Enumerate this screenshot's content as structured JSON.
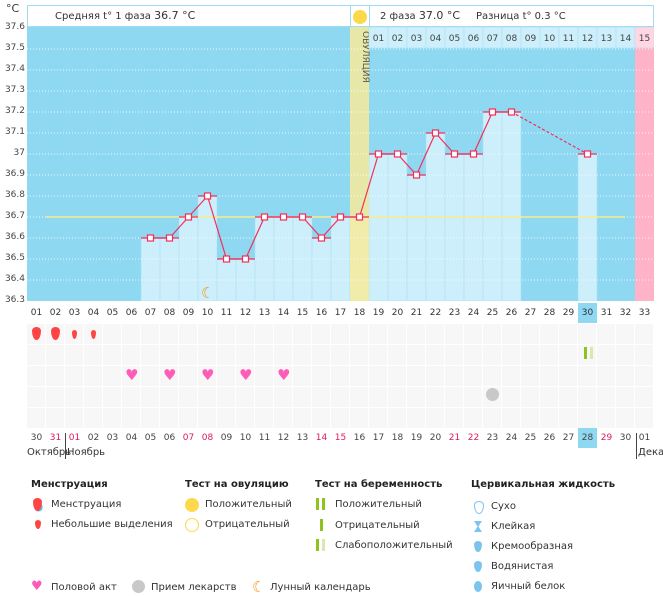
{
  "unit": "°C",
  "header": {
    "phase1": "Средняя t° 1 фаза",
    "phase1_value": "36.7 °C",
    "phase2": "2 фаза",
    "phase2_value": "37.0 °C",
    "diff": "Разница t°",
    "diff_value": "0.3 °C"
  },
  "ovulation_label": "ОВУЛЯЦИЯ",
  "y_ticks": [
    "37.6",
    "37.5",
    "37.4",
    "37.3",
    "37.2",
    "37.1",
    "37",
    "36.9",
    "36.8",
    "36.7",
    "36.6",
    "36.5",
    "36.4",
    "36.3"
  ],
  "cycle_days": [
    "01",
    "02",
    "03",
    "04",
    "05",
    "06",
    "07",
    "08",
    "09",
    "10",
    "11",
    "12",
    "13",
    "14",
    "15",
    "16",
    "17",
    "18",
    "19",
    "20",
    "21",
    "22",
    "23",
    "24",
    "25",
    "26",
    "27",
    "28",
    "29",
    "30",
    "31",
    "32",
    "33"
  ],
  "phase2_days": [
    "01",
    "02",
    "03",
    "04",
    "05",
    "06",
    "07",
    "08",
    "09",
    "10",
    "11",
    "12",
    "13",
    "14",
    "15"
  ],
  "dates": [
    {
      "d": "30"
    },
    {
      "d": "31",
      "w": 1
    },
    {
      "d": "01",
      "w": 1
    },
    {
      "d": "02"
    },
    {
      "d": "03"
    },
    {
      "d": "04"
    },
    {
      "d": "05"
    },
    {
      "d": "06"
    },
    {
      "d": "07",
      "w": 1
    },
    {
      "d": "08",
      "w": 1
    },
    {
      "d": "09"
    },
    {
      "d": "10"
    },
    {
      "d": "11"
    },
    {
      "d": "12"
    },
    {
      "d": "13"
    },
    {
      "d": "14",
      "w": 1
    },
    {
      "d": "15",
      "w": 1
    },
    {
      "d": "16"
    },
    {
      "d": "17"
    },
    {
      "d": "18"
    },
    {
      "d": "19"
    },
    {
      "d": "20"
    },
    {
      "d": "21",
      "w": 1
    },
    {
      "d": "22",
      "w": 1
    },
    {
      "d": "23"
    },
    {
      "d": "24"
    },
    {
      "d": "25"
    },
    {
      "d": "26"
    },
    {
      "d": "27"
    },
    {
      "d": "28"
    },
    {
      "d": "29",
      "w": 1
    },
    {
      "d": "30"
    },
    {
      "d": "01"
    }
  ],
  "months": [
    "Октябрь",
    "Ноябрь",
    "Дека"
  ],
  "today_day": 30,
  "chart_data": {
    "type": "line",
    "ylim": [
      36.3,
      37.6
    ],
    "cover_line": 36.7,
    "ovulation_day": 18,
    "points": [
      [
        7,
        36.6
      ],
      [
        8,
        36.6
      ],
      [
        9,
        36.7
      ],
      [
        10,
        36.8
      ],
      [
        11,
        36.5
      ],
      [
        12,
        36.5
      ],
      [
        13,
        36.7
      ],
      [
        14,
        36.7
      ],
      [
        15,
        36.7
      ],
      [
        16,
        36.6
      ],
      [
        17,
        36.7
      ],
      [
        18,
        36.7
      ],
      [
        19,
        37.0
      ],
      [
        20,
        37.0
      ],
      [
        21,
        36.9
      ],
      [
        22,
        37.1
      ],
      [
        23,
        37.0
      ],
      [
        24,
        37.0
      ],
      [
        25,
        37.2
      ],
      [
        26,
        37.2
      ],
      [
        30,
        37.0
      ]
    ]
  },
  "events": {
    "menstruation": [
      1,
      2
    ],
    "spotting": [
      3,
      4
    ],
    "sex": [
      6,
      8,
      10,
      12,
      14
    ],
    "medication": [
      25
    ],
    "pregnancy_test_weak": [
      30
    ],
    "moon": [
      10
    ]
  },
  "legend": {
    "menstruation": {
      "title": "Менструация",
      "items": [
        "Менструация",
        "Небольшие выделения"
      ]
    },
    "ovulation_test": {
      "title": "Тест на овуляцию",
      "items": [
        "Положительный",
        "Отрицательный"
      ]
    },
    "pregnancy_test": {
      "title": "Тест на беременность",
      "items": [
        "Положительный",
        "Отрицательный",
        "Слабоположительный"
      ]
    },
    "cervical": {
      "title": "Цервикальная жидкость",
      "items": [
        "Сухо",
        "Клейкая",
        "Кремообразная",
        "Водянистая",
        "Яичный белок"
      ]
    },
    "other": [
      "Половой акт",
      "Прием лекарств",
      "Лунный календарь"
    ]
  },
  "colors": {
    "bg": "#8fd8f2",
    "bar": "#cdeefb",
    "line": "#f0305a",
    "ovulation": "#f7eb9a",
    "pink": "#ffb3c8",
    "today": "#8fd8f2"
  }
}
